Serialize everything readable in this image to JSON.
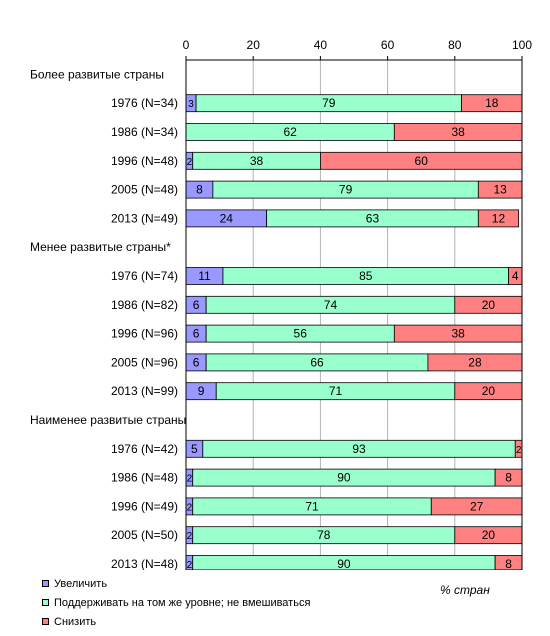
{
  "chart_data": {
    "type": "bar",
    "orientation": "horizontal",
    "stacked": true,
    "xlim": [
      0,
      100
    ],
    "xticks": [
      0,
      20,
      40,
      60,
      80,
      100
    ],
    "xlabel": "% стран",
    "grid": true,
    "legend_position": "bottom-left",
    "colors": {
      "increase": "#9999ff",
      "maintain": "#99ffcc",
      "reduce": "#ff8080"
    },
    "series_names": [
      "Увеличить",
      "Поддерживать на том же уровне; не вмешиваться",
      "Снизить"
    ],
    "groups": [
      {
        "name": "Более развитые страны",
        "rows": [
          {
            "label": "1976 (N=34)",
            "values": [
              3,
              79,
              18
            ]
          },
          {
            "label": "1986 (N=34)",
            "values": [
              0,
              62,
              38
            ]
          },
          {
            "label": "1996 (N=48)",
            "values": [
              2,
              38,
              60
            ]
          },
          {
            "label": "2005 (N=48)",
            "values": [
              8,
              79,
              13
            ]
          },
          {
            "label": "2013 (N=49)",
            "values": [
              24,
              63,
              12
            ]
          }
        ]
      },
      {
        "name": "Менее развитые страны*",
        "rows": [
          {
            "label": "1976 (N=74)",
            "values": [
              11,
              85,
              4
            ]
          },
          {
            "label": "1986 (N=82)",
            "values": [
              6,
              74,
              20
            ]
          },
          {
            "label": "1996 (N=96)",
            "values": [
              6,
              56,
              38
            ]
          },
          {
            "label": "2005 (N=96)",
            "values": [
              6,
              66,
              28
            ]
          },
          {
            "label": "2013 (N=99)",
            "values": [
              9,
              71,
              20
            ]
          }
        ]
      },
      {
        "name": "Наименее развитые страны",
        "rows": [
          {
            "label": "1976 (N=42)",
            "values": [
              5,
              93,
              2
            ]
          },
          {
            "label": "1986 (N=48)",
            "values": [
              2,
              90,
              8
            ]
          },
          {
            "label": "1996 (N=49)",
            "values": [
              2,
              71,
              27
            ]
          },
          {
            "label": "2005 (N=50)",
            "values": [
              2,
              78,
              20
            ]
          },
          {
            "label": "2013 (N=48)",
            "values": [
              2,
              90,
              8
            ]
          }
        ]
      }
    ]
  }
}
